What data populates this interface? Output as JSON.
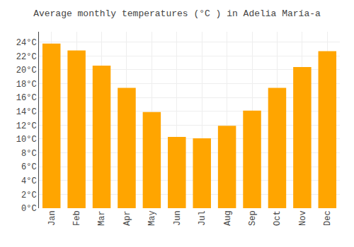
{
  "chart_data": {
    "type": "bar",
    "title": "Average monthly temperatures (°C ) in Adelia María-a",
    "categories": [
      "Jan",
      "Feb",
      "Mar",
      "Apr",
      "May",
      "Jun",
      "Jul",
      "Aug",
      "Sep",
      "Oct",
      "Nov",
      "Dec"
    ],
    "values": [
      23.8,
      22.8,
      20.6,
      17.4,
      13.9,
      10.3,
      10.1,
      11.9,
      14.1,
      17.4,
      20.4,
      22.7
    ],
    "color": "#FFA500",
    "ylim": [
      0,
      25.5
    ],
    "yticks": [
      {
        "value": 0,
        "label": "0°C"
      },
      {
        "value": 2,
        "label": "2°C"
      },
      {
        "value": 4,
        "label": "4°C"
      },
      {
        "value": 6,
        "label": "6°C"
      },
      {
        "value": 8,
        "label": "8°C"
      },
      {
        "value": 10,
        "label": "10°C"
      },
      {
        "value": 12,
        "label": "12°C"
      },
      {
        "value": 14,
        "label": "14°C"
      },
      {
        "value": 16,
        "label": "16°C"
      },
      {
        "value": 18,
        "label": "18°C"
      },
      {
        "value": 20,
        "label": "20°C"
      },
      {
        "value": 22,
        "label": "22°C"
      },
      {
        "value": 24,
        "label": "24°C"
      }
    ],
    "grid": true
  }
}
